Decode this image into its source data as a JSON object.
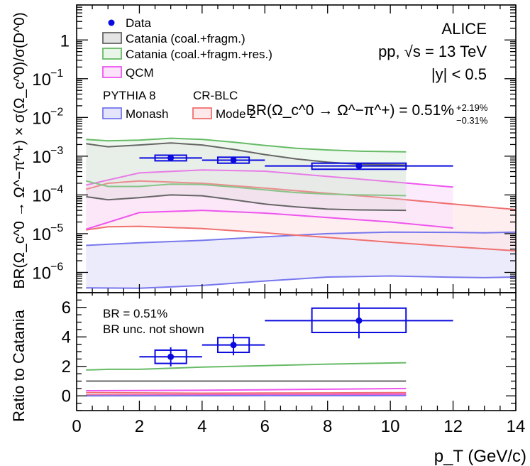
{
  "chart_data": [
    {
      "type": "line",
      "yscale": "log",
      "xlim": [
        0,
        14
      ],
      "ylim": [
        3e-07,
        8
      ],
      "ylabel": "BR(Ω_c^0 → Ω^−π^+) × σ(Ω_c^0)/σ(D^0)",
      "yticks": [
        {
          "base": "10",
          "exp": "−6",
          "value": 1e-06
        },
        {
          "base": "10",
          "exp": "−5",
          "value": 1e-05
        },
        {
          "base": "10",
          "exp": "−4",
          "value": 0.0001
        },
        {
          "base": "10",
          "exp": "−3",
          "value": 0.001
        },
        {
          "base": "10",
          "exp": "−2",
          "value": 0.01
        },
        {
          "base": "10",
          "exp": "−1",
          "value": 0.1
        },
        {
          "base": "1",
          "exp": "",
          "value": 1
        }
      ],
      "annotations": {
        "experiment": "ALICE",
        "system": "pp, √s = 13 TeV",
        "rapidity": "|y| < 0.5",
        "br": "BR(Ω_c^0 → Ω^−π^+) = 0.51%",
        "br_up": "+2.19%",
        "br_down": "−0.31%"
      },
      "legend": {
        "data": "Data",
        "catania": "Catania (coal.+fragm.)",
        "catania_res": "Catania (coal.+fragm.+res.)",
        "qcm": "QCM",
        "pythia_header": "PYTHIA 8",
        "crblc_header": "CR-BLC",
        "monash": "Monash",
        "mode2": "Mode 2"
      },
      "data_points": [
        {
          "x": 3,
          "xlo": 2,
          "xhi": 4,
          "y": 0.0009,
          "sys_xlo": 2.5,
          "sys_xhi": 3.5,
          "sys_lo": 0.00076,
          "sys_hi": 0.00106
        },
        {
          "x": 5,
          "xlo": 4,
          "xhi": 6,
          "y": 0.00079,
          "sys_xlo": 4.5,
          "sys_xhi": 5.5,
          "sys_lo": 0.00066,
          "sys_hi": 0.00094
        },
        {
          "x": 9,
          "xlo": 6,
          "xhi": 12,
          "y": 0.00056,
          "sys_xlo": 7.5,
          "sys_xhi": 10.5,
          "sys_lo": 0.00046,
          "sys_hi": 0.00066
        }
      ],
      "bands": [
        {
          "name": "Monash",
          "color": "#7777ee",
          "fill": "#e4e4fa",
          "x": [
            0.3,
            2,
            4,
            6,
            8,
            10,
            12,
            13,
            14
          ],
          "upper": [
            5e-06,
            5.8e-06,
            6.7e-06,
            8.3e-06,
            1e-05,
            1.1e-05,
            1.08e-05,
            1.05e-05,
            1.1e-05
          ],
          "lower": [
            4e-07,
            3.9e-07,
            4.6e-07,
            6e-07,
            7.6e-07,
            8.1e-07,
            7.5e-07,
            7.3e-07,
            7.6e-07
          ]
        },
        {
          "name": "Mode 2",
          "color": "#f07070",
          "fill": "#fde8ea",
          "x": [
            0.3,
            1,
            2,
            4,
            6,
            8,
            10,
            12,
            14
          ],
          "upper": [
            0.00014,
            0.0002,
            0.00023,
            0.0002,
            0.00015,
            0.00011,
            8.2e-05,
            5.8e-05,
            4.2e-05
          ],
          "lower": [
            1.25e-05,
            1.5e-05,
            1.55e-05,
            1.35e-05,
            1.05e-05,
            8e-06,
            6e-06,
            4.6e-06,
            3.6e-06
          ]
        },
        {
          "name": "QCM",
          "color": "#ee55ee",
          "fill": "#fbe4fb",
          "x": [
            0.3,
            2,
            4,
            6,
            8,
            10,
            12
          ],
          "upper": [
            0.00018,
            0.00037,
            0.00044,
            0.00041,
            0.0003,
            0.00022,
            0.00016
          ],
          "lower": [
            1.3e-05,
            3.5e-05,
            4e-05,
            3.4e-05,
            2.6e-05,
            2e-05,
            1.4e-05
          ]
        },
        {
          "name": "Catania (coal.+fragm.+res.)",
          "color": "#66bb66",
          "fill": "#e9f5e9",
          "x": [
            0.3,
            1,
            2,
            3,
            4,
            5,
            6,
            7,
            8,
            9,
            10.5
          ],
          "upper": [
            0.0027,
            0.0025,
            0.0026,
            0.0029,
            0.0027,
            0.0023,
            0.0019,
            0.0016,
            0.00145,
            0.00135,
            0.0013
          ],
          "lower": [
            0.00023,
            0.000165,
            0.000165,
            0.00019,
            0.000185,
            0.00016,
            0.000135,
            0.000115,
            0.000105,
            0.0001,
            9.6e-05
          ]
        }
      ],
      "curves": [
        {
          "name": "Catania (coal.+fragm.) upper",
          "color": "#666666",
          "x": [
            0.3,
            1,
            2,
            3,
            4,
            5,
            6,
            7,
            8,
            9,
            10.5
          ],
          "y": [
            0.0021,
            0.00175,
            0.00195,
            0.0022,
            0.00195,
            0.0015,
            0.0011,
            0.00085,
            0.0007,
            0.00062,
            0.00059
          ]
        },
        {
          "name": "Catania (coal.+fragm.) lower",
          "color": "#666666",
          "x": [
            0.3,
            1,
            2,
            3,
            4,
            5,
            6,
            7,
            8,
            9,
            10.5
          ],
          "y": [
            9e-05,
            7.5e-05,
            8.5e-05,
            0.0001,
            9.5e-05,
            7.5e-05,
            5.8e-05,
            4.9e-05,
            4.3e-05,
            4.1e-05,
            4e-05
          ]
        }
      ]
    },
    {
      "type": "line",
      "xlim": [
        0,
        14
      ],
      "ylim": [
        -1,
        7
      ],
      "xlabel": "p_T (GeV/c)",
      "ylabel": "Ratio to Catania",
      "xticks": [
        0,
        2,
        4,
        6,
        8,
        10,
        12,
        14
      ],
      "yticks": [
        0,
        2,
        4,
        6
      ],
      "annotations": {
        "line1": "BR = 0.51%",
        "line2": "BR unc. not shown"
      },
      "data_points": [
        {
          "x": 3,
          "xlo": 2,
          "xhi": 4,
          "y": 2.65,
          "ylo": 2.0,
          "yhi": 3.3,
          "sys_xlo": 2.5,
          "sys_xhi": 3.5,
          "sys_lo": 2.2,
          "sys_hi": 3.1
        },
        {
          "x": 5,
          "xlo": 4,
          "xhi": 6,
          "y": 3.45,
          "ylo": 2.75,
          "yhi": 4.2,
          "sys_xlo": 4.5,
          "sys_xhi": 5.5,
          "sys_lo": 2.95,
          "sys_hi": 3.95
        },
        {
          "x": 9,
          "xlo": 6,
          "xhi": 12,
          "y": 5.1,
          "ylo": 3.9,
          "yhi": 6.3,
          "sys_xlo": 7.5,
          "sys_xhi": 10.5,
          "sys_lo": 4.3,
          "sys_hi": 5.95
        }
      ],
      "curves": [
        {
          "name": "Catania (coal.+fragm.+res.)",
          "color": "#66bb66",
          "x": [
            0.3,
            1,
            2,
            4,
            6,
            8,
            10.5
          ],
          "y": [
            1.75,
            1.8,
            1.8,
            1.95,
            2.05,
            2.15,
            2.25
          ]
        },
        {
          "name": "Catania (coal.+fragm.)",
          "color": "#666666",
          "x": [
            0.3,
            10.5
          ],
          "y": [
            1.0,
            1.0
          ]
        },
        {
          "name": "QCM upper",
          "color": "#ee55ee",
          "x": [
            0.3,
            4,
            8,
            10.5
          ],
          "y": [
            0.35,
            0.38,
            0.45,
            0.5
          ]
        },
        {
          "name": "QCM lower",
          "color": "#ee55ee",
          "x": [
            0.3,
            4,
            8,
            10.5
          ],
          "y": [
            0.06,
            0.08,
            0.1,
            0.12
          ]
        },
        {
          "name": "Mode 2 upper",
          "color": "#f07070",
          "x": [
            0.3,
            4,
            8,
            10.5
          ],
          "y": [
            0.22,
            0.18,
            0.2,
            0.22
          ]
        },
        {
          "name": "Mode 2 lower",
          "color": "#f07070",
          "x": [
            0.3,
            4,
            8,
            10.5
          ],
          "y": [
            0.04,
            0.03,
            0.03,
            0.03
          ]
        },
        {
          "name": "Monash",
          "color": "#7777ee",
          "x": [
            0.3,
            4,
            8,
            10.5
          ],
          "y": [
            0.004,
            0.006,
            0.01,
            0.015
          ]
        }
      ]
    }
  ]
}
